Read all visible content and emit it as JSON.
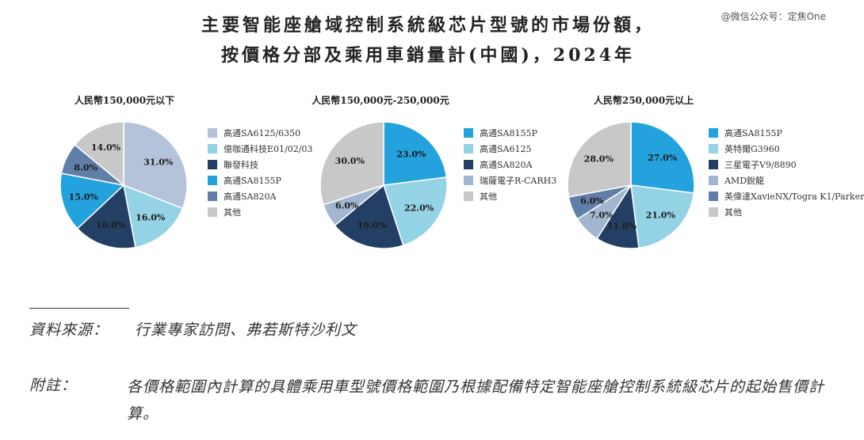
{
  "title": {
    "line1": "主要智能座艙域控制系統級芯片型號的市場份額，",
    "line2": "按價格分部及乘用車銷量計(中國)，2024年"
  },
  "watermark": "@微信公众号：定焦One",
  "chart_data": [
    {
      "type": "pie",
      "title": "人民幣150,000元以下",
      "unit": "%",
      "slices": [
        {
          "label": "高通SA6125/6350",
          "value": 31.0,
          "display": "31.0%",
          "color": "#b4c3d9"
        },
        {
          "label": "億咖通科技E01/02/03",
          "value": 16.0,
          "display": "16.0%",
          "color": "#94d3e6"
        },
        {
          "label": "聯發科技",
          "value": 16.0,
          "display": "16.0%",
          "color": "#243f64"
        },
        {
          "label": "高通SA8155P",
          "value": 15.0,
          "display": "15.0%",
          "color": "#23a2de"
        },
        {
          "label": "高通SA820A",
          "value": 8.0,
          "display": "8.0%",
          "color": "#617ea9"
        },
        {
          "label": "其他",
          "value": 14.0,
          "display": "14.0%",
          "color": "#c8c8c8"
        }
      ]
    },
    {
      "type": "pie",
      "title": "人民幣150,000元-250,000元",
      "unit": "%",
      "slices": [
        {
          "label": "高通SA8155P",
          "value": 23.0,
          "display": "23.0%",
          "color": "#23a2de"
        },
        {
          "label": "高通SA6125",
          "value": 22.0,
          "display": "22.0%",
          "color": "#94d3e6"
        },
        {
          "label": "高通SA820A",
          "value": 19.0,
          "display": "19.0%",
          "color": "#243f64"
        },
        {
          "label": "瑞薩電子R-CARH3",
          "value": 6.0,
          "display": "6.0%",
          "color": "#a2b6cf"
        },
        {
          "label": "其他",
          "value": 30.0,
          "display": "30.0%",
          "color": "#c8c8c8"
        }
      ]
    },
    {
      "type": "pie",
      "title": "人民幣250,000元以上",
      "unit": "%",
      "slices": [
        {
          "label": "高通SA8155P",
          "value": 27.0,
          "display": "27.0%",
          "color": "#23a2de"
        },
        {
          "label": "英特爾G3960",
          "value": 21.0,
          "display": "21.0%",
          "color": "#94d3e6"
        },
        {
          "label": "三星電子V9/8890",
          "value": 11.0,
          "display": "11.0%",
          "color": "#243f64"
        },
        {
          "label": "AMD銳龍",
          "value": 7.0,
          "display": "7.0%",
          "color": "#a2b6cf"
        },
        {
          "label": "英偉達XavieNX/Togra K1/Parker",
          "value": 6.0,
          "display": "6.0%",
          "color": "#617ea9"
        },
        {
          "label": "其他",
          "value": 28.0,
          "display": "28.0%",
          "color": "#c8c8c8"
        }
      ]
    }
  ],
  "source": {
    "label": "資料來源：",
    "text": "行業專家訪問、弗若斯特沙利文"
  },
  "note": {
    "label": "附註：",
    "text": "各價格範圍內計算的具體乘用車型號價格範圍乃根據配備特定智能座艙控制系統級芯片的起始售價計算。"
  }
}
